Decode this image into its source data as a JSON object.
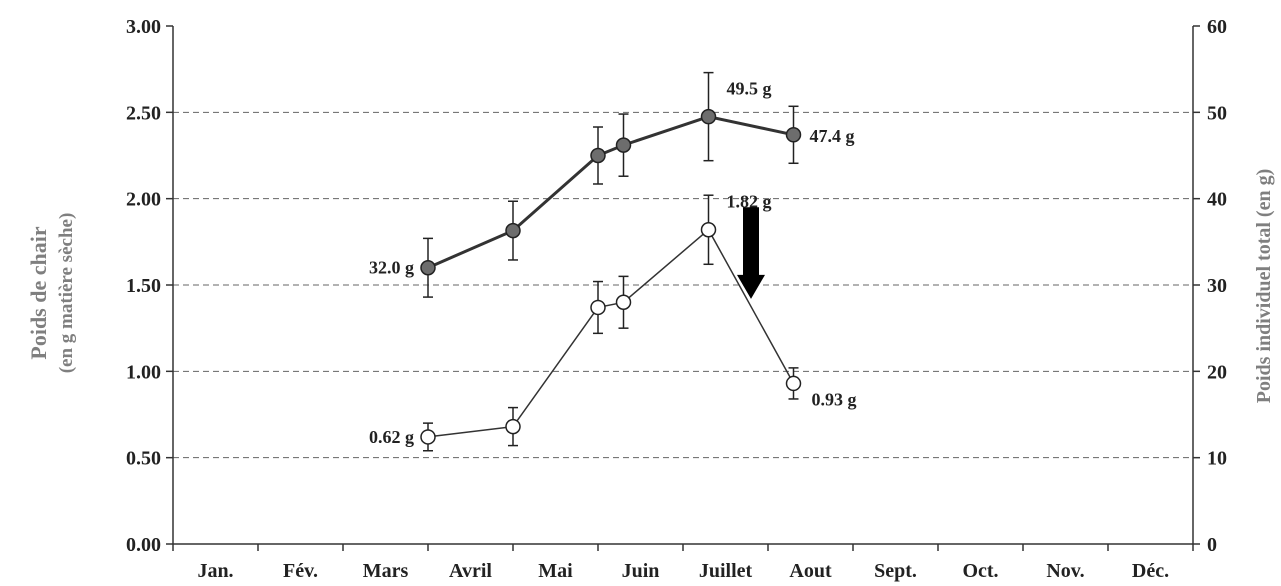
{
  "chart_data": {
    "type": "line",
    "categories": [
      "Jan.",
      "Fév.",
      "Mars",
      "Avril",
      "Mai",
      "Juin",
      "Juillet",
      "Aout",
      "Sept.",
      "Oct.",
      "Nov.",
      "Déc."
    ],
    "y_left": {
      "label_line1": "Poids de chair",
      "label_line2": "(en g matière sèche)",
      "range": [
        0,
        3
      ],
      "ticks": [
        "0.00",
        "0.50",
        "1.00",
        "1.50",
        "2.00",
        "2.50",
        "3.00"
      ]
    },
    "y_right": {
      "label": "Poids individuel total (en g)",
      "range": [
        0,
        60
      ],
      "ticks": [
        "0",
        "10",
        "20",
        "30",
        "40",
        "50",
        "60"
      ]
    },
    "grid": {
      "horizontal_dashed": true
    },
    "series": [
      {
        "axis": "right",
        "marker": "filled-gray",
        "color": "#6d6d6d",
        "points": [
          {
            "month": 3.0,
            "value": 32.0,
            "err": 3.4
          },
          {
            "month": 4.0,
            "value": 36.3,
            "err": 3.4
          },
          {
            "month": 5.0,
            "value": 45.0,
            "err": 3.3
          },
          {
            "month": 5.3,
            "value": 46.2,
            "err": 3.6
          },
          {
            "month": 6.3,
            "value": 49.5,
            "err": 5.1
          },
          {
            "month": 7.3,
            "value": 47.4,
            "err": 3.3
          }
        ]
      },
      {
        "axis": "left",
        "marker": "open-white",
        "color": "#ffffff",
        "points": [
          {
            "month": 3.0,
            "value": 0.62,
            "err": 0.08
          },
          {
            "month": 4.0,
            "value": 0.68,
            "err": 0.11
          },
          {
            "month": 5.0,
            "value": 1.37,
            "err": 0.15
          },
          {
            "month": 5.3,
            "value": 1.4,
            "err": 0.15
          },
          {
            "month": 6.3,
            "value": 1.82,
            "err": 0.2
          },
          {
            "month": 7.3,
            "value": 0.93,
            "err": 0.09
          }
        ]
      }
    ],
    "annotations": [
      {
        "text": "32.0 g",
        "series": 0,
        "point": 0,
        "pos": "left"
      },
      {
        "text": "49.5 g",
        "series": 0,
        "point": 4,
        "pos": "upper-right"
      },
      {
        "text": "47.4 g",
        "series": 0,
        "point": 5,
        "pos": "right"
      },
      {
        "text": "0.62 g",
        "series": 1,
        "point": 0,
        "pos": "left"
      },
      {
        "text": "1.82 g",
        "series": 1,
        "point": 4,
        "pos": "upper-right"
      },
      {
        "text": "0.93 g",
        "series": 1,
        "point": 5,
        "pos": "lower-right"
      }
    ],
    "arrow": {
      "month": 6.8,
      "y_top": 1.95,
      "y_bottom": 1.42,
      "direction": "down"
    }
  }
}
